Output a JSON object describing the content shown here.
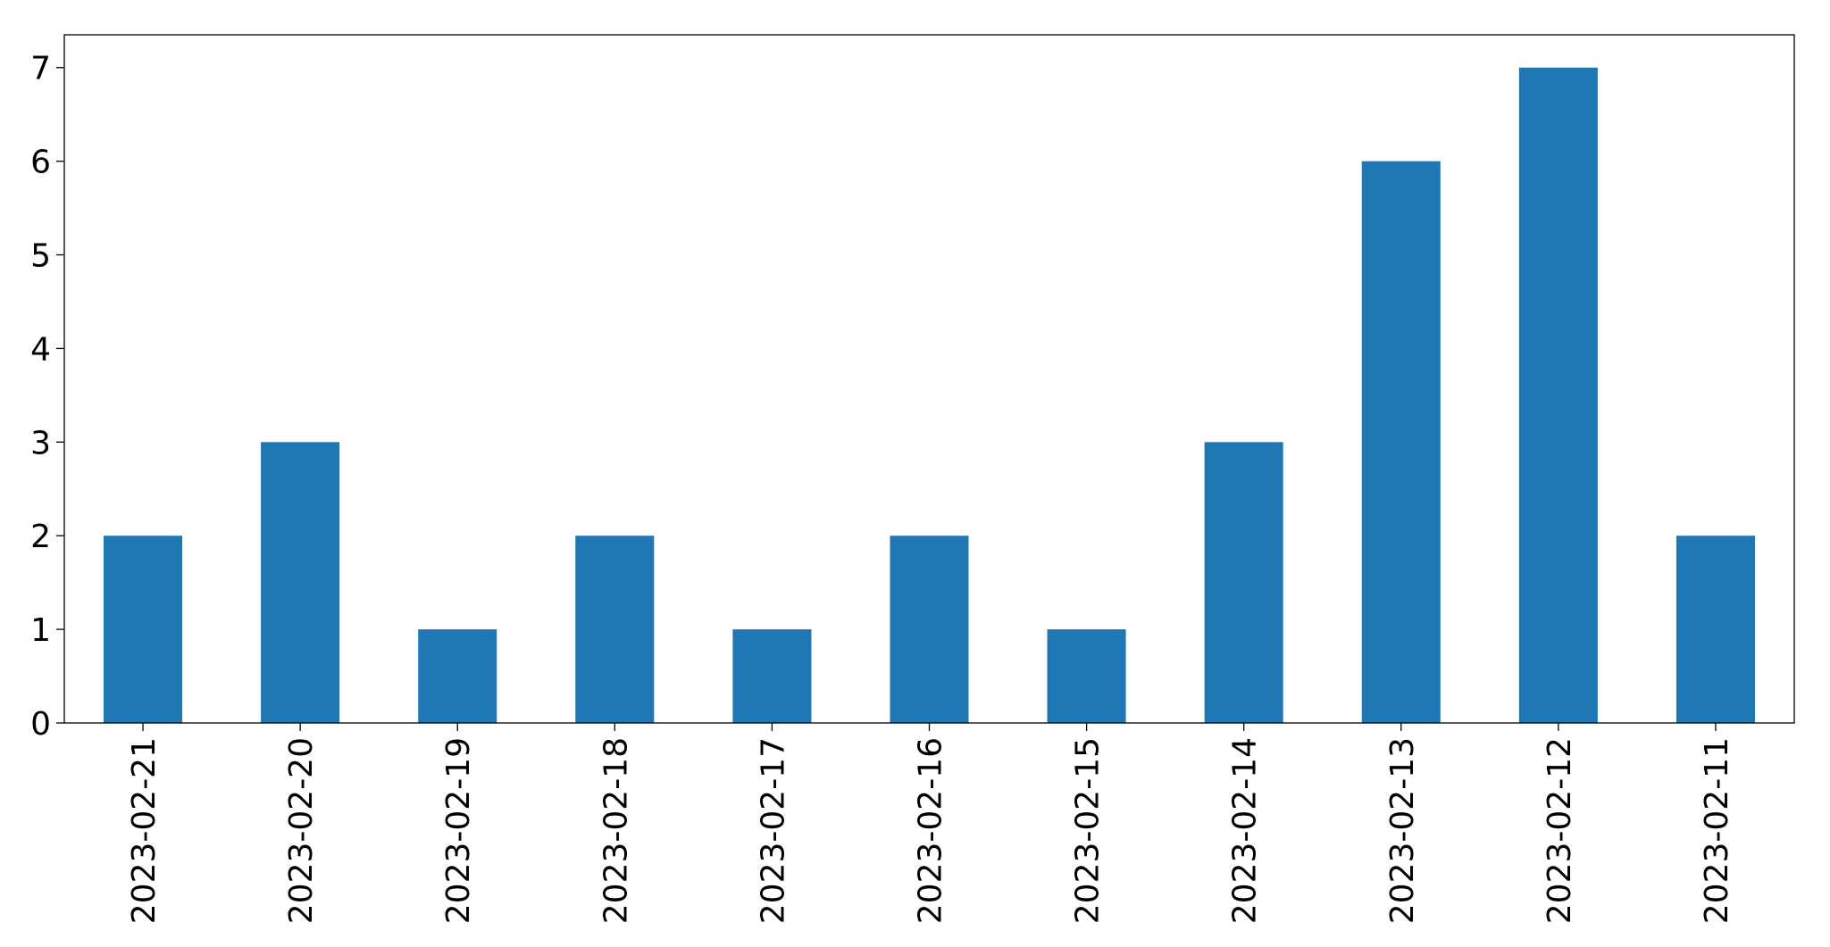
{
  "chart_data": {
    "type": "bar",
    "categories": [
      "2023-02-21",
      "2023-02-20",
      "2023-02-19",
      "2023-02-18",
      "2023-02-17",
      "2023-02-16",
      "2023-02-15",
      "2023-02-14",
      "2023-02-13",
      "2023-02-12",
      "2023-02-11"
    ],
    "values": [
      2,
      3,
      1,
      2,
      1,
      2,
      1,
      3,
      6,
      7,
      2
    ],
    "color": "#1f77b4",
    "ylim": [
      0,
      7.35
    ],
    "yticks": [
      0,
      1,
      2,
      3,
      4,
      5,
      6,
      7
    ],
    "grid": false
  }
}
